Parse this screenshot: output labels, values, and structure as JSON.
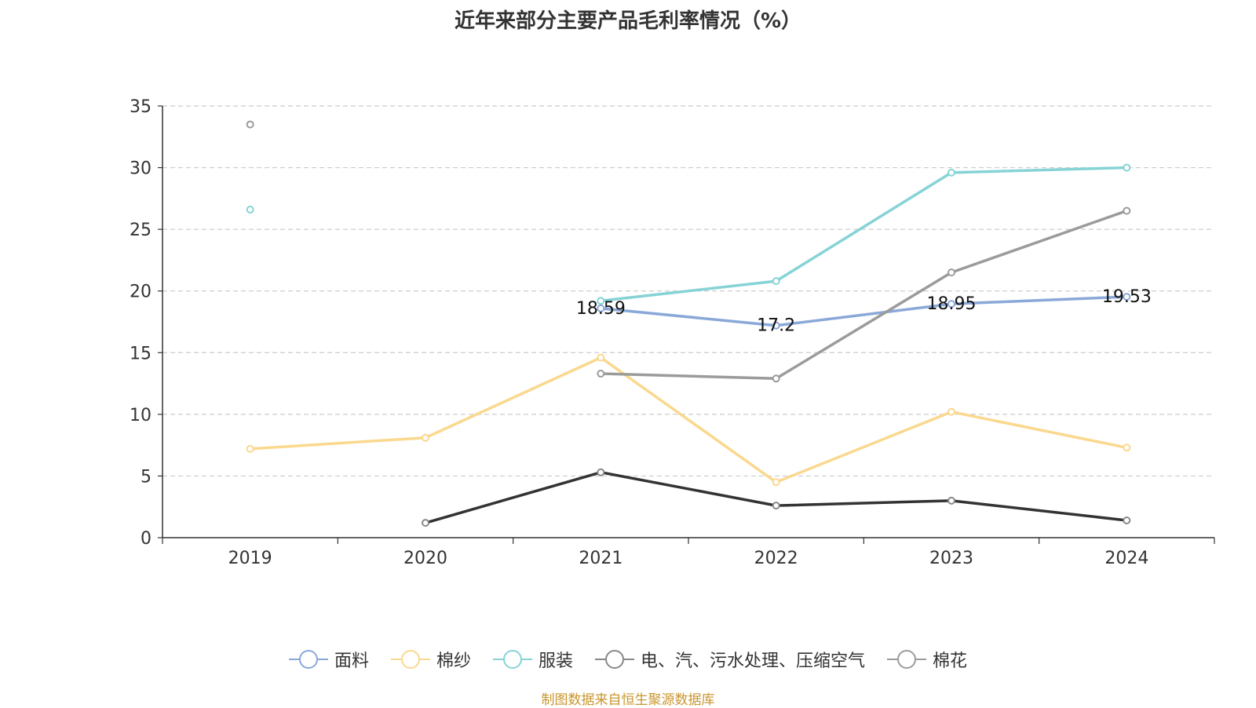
{
  "chart_data": {
    "type": "line",
    "title": "近年来部分主要产品毛利率情况（%）",
    "categories": [
      "2019",
      "2020",
      "2021",
      "2022",
      "2023",
      "2024"
    ],
    "ylim": [
      0,
      35
    ],
    "yticks": [
      "0",
      "5",
      "10",
      "15",
      "20",
      "25",
      "30",
      "35"
    ],
    "grid": true,
    "legend_position": "bottom",
    "series": [
      {
        "name": "面料",
        "color": "#8aa8d8",
        "values": [
          null,
          null,
          18.59,
          17.2,
          18.95,
          19.53
        ],
        "labels": [
          "",
          "",
          "18.59",
          "17.2",
          "18.95",
          "19.53"
        ]
      },
      {
        "name": "棉纱",
        "color": "#fad88e",
        "values": [
          7.2,
          8.1,
          14.6,
          4.5,
          10.2,
          7.3
        ]
      },
      {
        "name": "服装",
        "color": "#86d3d6",
        "values": [
          26.6,
          null,
          19.2,
          20.8,
          29.6,
          30.0
        ]
      },
      {
        "name": "电、汽、污水处理、压缩空气",
        "color": "#333333",
        "values": [
          null,
          1.2,
          5.3,
          2.6,
          3.0,
          1.4
        ]
      },
      {
        "name": "棉花",
        "color": "#9b9b9b",
        "values": [
          33.5,
          null,
          13.3,
          12.9,
          21.5,
          26.5
        ]
      }
    ]
  },
  "source": "制图数据来自恒生聚源数据库"
}
